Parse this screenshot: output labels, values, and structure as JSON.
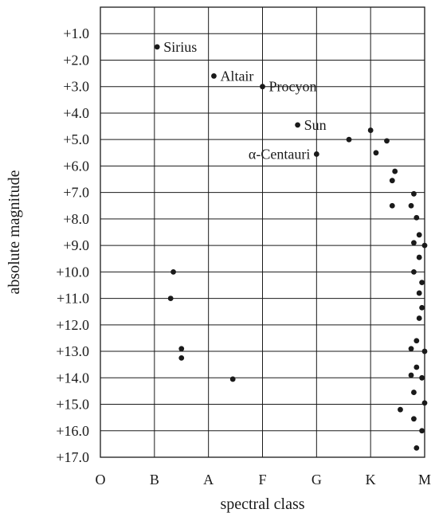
{
  "chart_data": {
    "type": "scatter",
    "title": "",
    "xlabel": "spectral class",
    "ylabel": "absolute magnitude",
    "x_categories": [
      "O",
      "B",
      "A",
      "F",
      "G",
      "K",
      "M"
    ],
    "y_ticks": [
      "+1.0",
      "+2.0",
      "+3.0",
      "+4.0",
      "+5.0",
      "+6.0",
      "+7.0",
      "+8.0",
      "+9.0",
      "+10.0",
      "+11.0",
      "+12.0",
      "+13.0",
      "+14.0",
      "+15.0",
      "+16.0",
      "+17.0"
    ],
    "y_range": [
      0.0,
      17.0
    ],
    "y_direction": "brighter (smaller magnitude) at top",
    "grid": "horizontal and vertical lines at each tick",
    "points": [
      {
        "x": 1.05,
        "y": 1.5,
        "label": "Sirius"
      },
      {
        "x": 2.1,
        "y": 2.6,
        "label": "Altair"
      },
      {
        "x": 3.0,
        "y": 3.0,
        "label": "Procyon"
      },
      {
        "x": 3.65,
        "y": 4.45,
        "label": "Sun"
      },
      {
        "x": 4.0,
        "y": 5.55,
        "label": "α-Centauri"
      },
      {
        "x": 4.6,
        "y": 5.0
      },
      {
        "x": 5.0,
        "y": 4.65
      },
      {
        "x": 5.3,
        "y": 5.05
      },
      {
        "x": 5.1,
        "y": 5.5
      },
      {
        "x": 5.45,
        "y": 6.2
      },
      {
        "x": 5.4,
        "y": 6.55
      },
      {
        "x": 5.8,
        "y": 7.05
      },
      {
        "x": 5.75,
        "y": 7.5
      },
      {
        "x": 5.4,
        "y": 7.5
      },
      {
        "x": 5.85,
        "y": 7.95
      },
      {
        "x": 5.9,
        "y": 8.6
      },
      {
        "x": 5.8,
        "y": 8.9
      },
      {
        "x": 6.0,
        "y": 9.0
      },
      {
        "x": 5.9,
        "y": 9.45
      },
      {
        "x": 5.8,
        "y": 10.0
      },
      {
        "x": 5.95,
        "y": 10.4
      },
      {
        "x": 5.9,
        "y": 10.8
      },
      {
        "x": 5.95,
        "y": 11.35
      },
      {
        "x": 5.9,
        "y": 11.75
      },
      {
        "x": 1.35,
        "y": 10.0
      },
      {
        "x": 1.3,
        "y": 11.0
      },
      {
        "x": 1.5,
        "y": 12.9
      },
      {
        "x": 1.5,
        "y": 13.25
      },
      {
        "x": 2.45,
        "y": 14.05
      },
      {
        "x": 5.85,
        "y": 12.6
      },
      {
        "x": 5.75,
        "y": 12.9
      },
      {
        "x": 6.0,
        "y": 13.0
      },
      {
        "x": 5.85,
        "y": 13.6
      },
      {
        "x": 5.75,
        "y": 13.9
      },
      {
        "x": 5.95,
        "y": 14.0
      },
      {
        "x": 5.8,
        "y": 14.55
      },
      {
        "x": 6.0,
        "y": 14.95
      },
      {
        "x": 5.55,
        "y": 15.2
      },
      {
        "x": 5.8,
        "y": 15.55
      },
      {
        "x": 5.95,
        "y": 16.0
      },
      {
        "x": 5.85,
        "y": 16.65
      }
    ]
  }
}
